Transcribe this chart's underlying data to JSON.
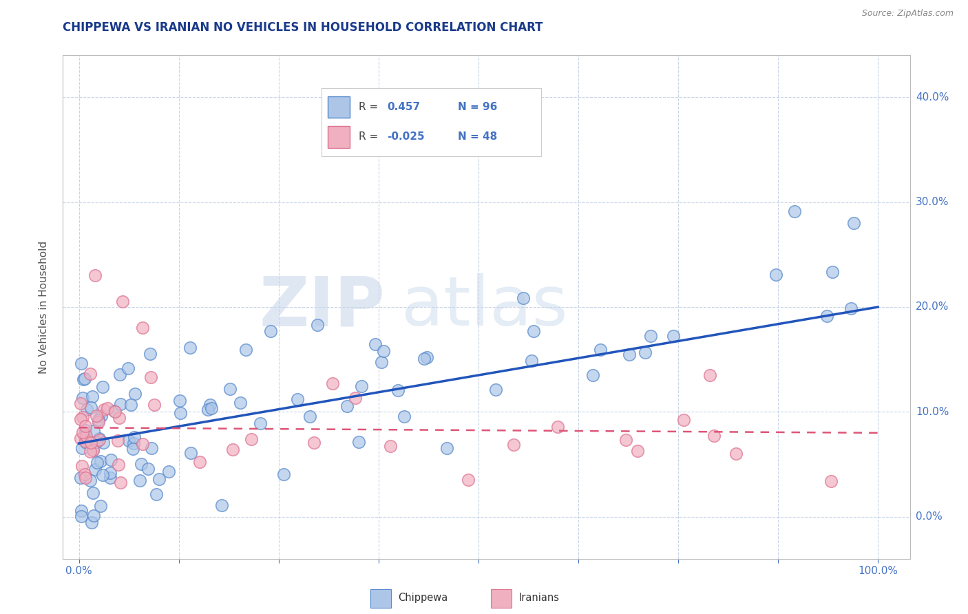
{
  "title": "CHIPPEWA VS IRANIAN NO VEHICLES IN HOUSEHOLD CORRELATION CHART",
  "source": "Source: ZipAtlas.com",
  "ylabel": "No Vehicles in Household",
  "watermark_zip": "ZIP",
  "watermark_atlas": "atlas",
  "chippewa_R": 0.457,
  "chippewa_N": 96,
  "iranian_R": -0.025,
  "iranian_N": 48,
  "chippewa_fill": "#adc6e8",
  "chippewa_edge": "#5588cc",
  "iranian_fill": "#f0b0c0",
  "iranian_edge": "#dd7090",
  "chippewa_line_color": "#2255bb",
  "iranian_line_color": "#dd5577",
  "background_color": "#ffffff",
  "grid_color": "#c8d4e8",
  "title_color": "#1a3a8a",
  "source_color": "#888888",
  "axis_tick_color": "#4472c4",
  "ylabel_color": "#555555",
  "chip_line_x0": 0,
  "chip_line_y0": 7.0,
  "chip_line_x1": 100,
  "chip_line_y1": 20.0,
  "iran_line_x0": 0,
  "iran_line_y0": 8.5,
  "iran_line_x1": 100,
  "iran_line_y1": 8.0,
  "ytick_vals": [
    0,
    10,
    20,
    30,
    40
  ],
  "ytick_labels": [
    "0.0%",
    "10.0%",
    "20.0%",
    "30.0%",
    "40.0%"
  ],
  "xtick_vals": [
    0,
    12.5,
    25,
    37.5,
    50,
    62.5,
    75,
    87.5,
    100
  ],
  "xtick_labels": [
    "0.0%",
    "",
    "",
    "",
    "",
    "",
    "",
    "",
    "100.0%"
  ],
  "xlim": [
    -2,
    104
  ],
  "ylim": [
    -4,
    44
  ]
}
